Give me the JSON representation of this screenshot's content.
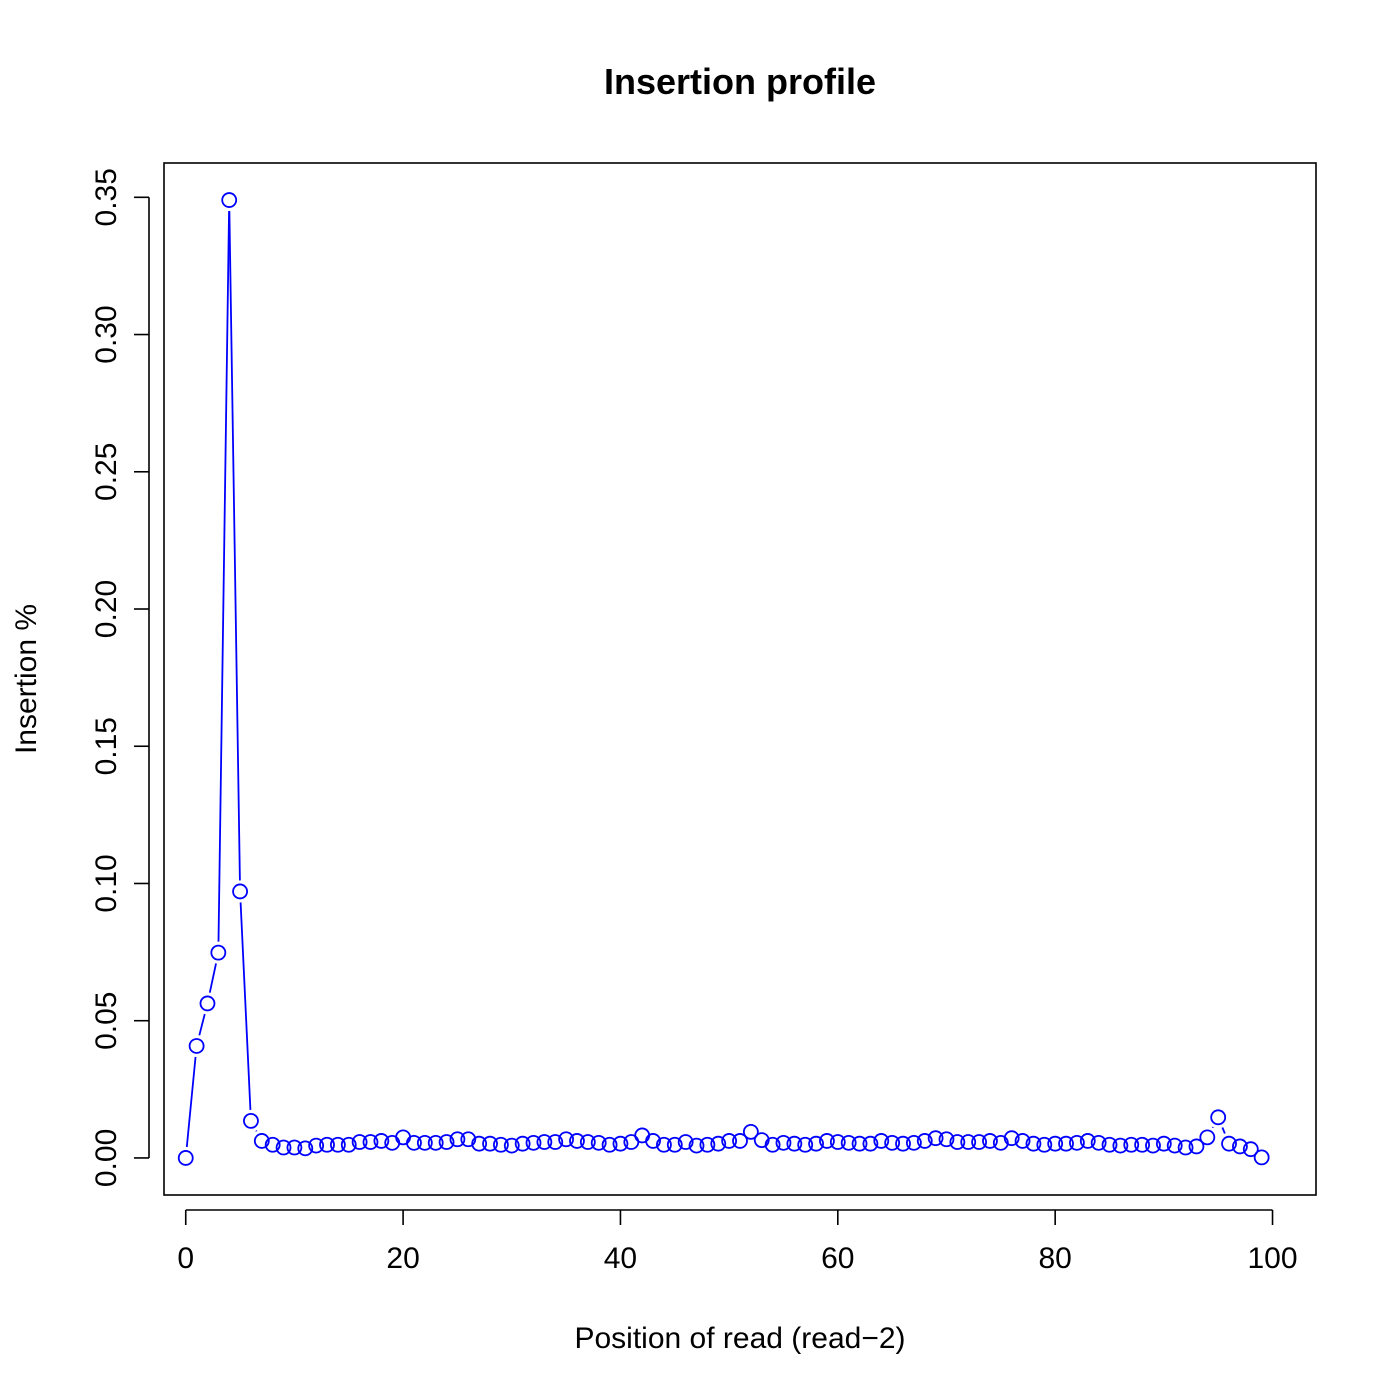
{
  "chart_data": {
    "type": "line",
    "title": "Insertion profile",
    "xlabel": "Position of read (read−2)",
    "ylabel": "Insertion %",
    "xlim": [
      -2,
      104
    ],
    "ylim": [
      -0.0135,
      0.3625
    ],
    "x_ticks": [
      0,
      20,
      40,
      60,
      80,
      100
    ],
    "x_tick_labels": [
      "0",
      "20",
      "40",
      "60",
      "80",
      "100"
    ],
    "y_ticks": [
      0.0,
      0.05,
      0.1,
      0.15,
      0.2,
      0.25,
      0.3,
      0.35
    ],
    "y_tick_labels": [
      "0.00",
      "0.05",
      "0.10",
      "0.15",
      "0.20",
      "0.25",
      "0.30",
      "0.35"
    ],
    "grid": false,
    "series": [
      {
        "color": "#0000ff",
        "marker": "open-circle",
        "line": "solid",
        "x": [
          0,
          1,
          2,
          3,
          4,
          5,
          6,
          7,
          8,
          9,
          10,
          11,
          12,
          13,
          14,
          15,
          16,
          17,
          18,
          19,
          20,
          21,
          22,
          23,
          24,
          25,
          26,
          27,
          28,
          29,
          30,
          31,
          32,
          33,
          34,
          35,
          36,
          37,
          38,
          39,
          40,
          41,
          42,
          43,
          44,
          45,
          46,
          47,
          48,
          49,
          50,
          51,
          52,
          53,
          54,
          55,
          56,
          57,
          58,
          59,
          60,
          61,
          62,
          63,
          64,
          65,
          66,
          67,
          68,
          69,
          70,
          71,
          72,
          73,
          74,
          75,
          76,
          77,
          78,
          79,
          80,
          81,
          82,
          83,
          84,
          85,
          86,
          87,
          88,
          89,
          90,
          91,
          92,
          93,
          94,
          95,
          96,
          97,
          98,
          99
        ],
        "values": [
          0.0,
          0.0408,
          0.0563,
          0.0748,
          0.349,
          0.0971,
          0.0135,
          0.0062,
          0.0048,
          0.0038,
          0.0038,
          0.0035,
          0.0045,
          0.0048,
          0.0048,
          0.0048,
          0.0058,
          0.0058,
          0.0062,
          0.0055,
          0.0075,
          0.0055,
          0.0055,
          0.0055,
          0.0058,
          0.0068,
          0.0068,
          0.0052,
          0.0052,
          0.0048,
          0.0045,
          0.0052,
          0.0055,
          0.0058,
          0.0058,
          0.0068,
          0.0062,
          0.0058,
          0.0055,
          0.0048,
          0.0052,
          0.0058,
          0.0082,
          0.0062,
          0.0048,
          0.0048,
          0.0058,
          0.0045,
          0.0048,
          0.0052,
          0.0062,
          0.0062,
          0.0095,
          0.0065,
          0.0048,
          0.0055,
          0.0052,
          0.0048,
          0.0052,
          0.0062,
          0.0058,
          0.0055,
          0.0052,
          0.0052,
          0.0062,
          0.0055,
          0.0052,
          0.0055,
          0.0062,
          0.0072,
          0.0068,
          0.0058,
          0.0058,
          0.0058,
          0.0062,
          0.0055,
          0.0072,
          0.0062,
          0.0052,
          0.0048,
          0.0052,
          0.0052,
          0.0055,
          0.0062,
          0.0055,
          0.0048,
          0.0045,
          0.0048,
          0.0048,
          0.0045,
          0.0052,
          0.0045,
          0.0038,
          0.0042,
          0.0075,
          0.0148,
          0.0052,
          0.0042,
          0.0032,
          0.0002
        ]
      }
    ]
  }
}
